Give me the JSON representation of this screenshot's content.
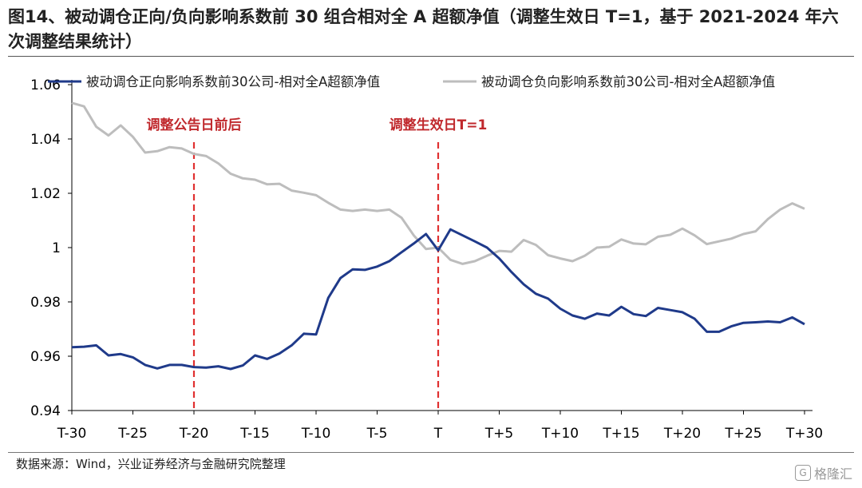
{
  "title": "图14、被动调仓正向/负向影响系数前 30 组合相对全 A 超额净值（调整生效日 T=1，基于 2021-2024 年六次调整结果统计）",
  "source": "数据来源：Wind，兴业证券经济与金融研究院整理",
  "watermark": "格隆汇",
  "chart_data": {
    "type": "line",
    "x": [
      "T-30",
      "T-29",
      "T-28",
      "T-27",
      "T-26",
      "T-25",
      "T-24",
      "T-23",
      "T-22",
      "T-21",
      "T-20",
      "T-19",
      "T-18",
      "T-17",
      "T-16",
      "T-15",
      "T-14",
      "T-13",
      "T-12",
      "T-11",
      "T-10",
      "T-9",
      "T-8",
      "T-7",
      "T-6",
      "T-5",
      "T-4",
      "T-3",
      "T-2",
      "T-1",
      "T",
      "T+1",
      "T+2",
      "T+3",
      "T+4",
      "T+5",
      "T+6",
      "T+7",
      "T+8",
      "T+9",
      "T+10",
      "T+11",
      "T+12",
      "T+13",
      "T+14",
      "T+15",
      "T+16",
      "T+17",
      "T+18",
      "T+19",
      "T+20",
      "T+21",
      "T+22",
      "T+23",
      "T+24",
      "T+25",
      "T+26",
      "T+27",
      "T+28",
      "T+29",
      "T+30"
    ],
    "tick_labels": [
      "T-30",
      "T-25",
      "T-20",
      "T-15",
      "T-10",
      "T-5",
      "T",
      "T+5",
      "T+10",
      "T+15",
      "T+20",
      "T+25",
      "T+30"
    ],
    "ylim": [
      0.94,
      1.06
    ],
    "yticks": [
      "0.94",
      "0.96",
      "0.98",
      "1",
      "1.02",
      "1.04",
      "1.06"
    ],
    "series": [
      {
        "name": "被动调仓正向影响系数前30公司-相对全A超额净值",
        "color": "#1f3a8a",
        "values": [
          0.9633,
          0.9635,
          0.964,
          0.9603,
          0.9608,
          0.9596,
          0.9568,
          0.9555,
          0.9568,
          0.9568,
          0.956,
          0.9558,
          0.9563,
          0.9553,
          0.9566,
          0.9603,
          0.959,
          0.961,
          0.964,
          0.9683,
          0.968,
          0.9815,
          0.9888,
          0.992,
          0.9918,
          0.993,
          0.995,
          0.9983,
          1.0015,
          1.005,
          0.999,
          1.0067,
          1.0045,
          1.0023,
          1.0,
          0.996,
          0.991,
          0.9865,
          0.983,
          0.9812,
          0.9775,
          0.975,
          0.9738,
          0.9757,
          0.975,
          0.9782,
          0.9755,
          0.9748,
          0.9778,
          0.977,
          0.9762,
          0.9738,
          0.969,
          0.969,
          0.971,
          0.9723,
          0.9725,
          0.9728,
          0.9725,
          0.9743,
          0.9718
        ]
      },
      {
        "name": "被动调仓负向影响系数前30公司-相对全A超额净值",
        "color": "#bdbdbd",
        "values": [
          1.0533,
          1.052,
          1.0445,
          1.0413,
          1.045,
          1.0408,
          1.035,
          1.0355,
          1.037,
          1.0365,
          1.0345,
          1.0337,
          1.031,
          1.0272,
          1.0255,
          1.025,
          1.0233,
          1.0235,
          1.021,
          1.0202,
          1.0193,
          1.0165,
          1.014,
          1.0135,
          1.014,
          1.0135,
          1.014,
          1.011,
          1.0045,
          0.9995,
          1.0,
          0.9955,
          0.994,
          0.995,
          0.997,
          0.9988,
          0.9985,
          1.0028,
          1.001,
          0.9972,
          0.996,
          0.995,
          0.997,
          1.0,
          1.0003,
          1.003,
          1.0015,
          1.0012,
          1.004,
          1.0047,
          1.007,
          1.0045,
          1.0013,
          1.0023,
          1.0033,
          1.005,
          1.006,
          1.0105,
          1.014,
          1.0163,
          1.0143
        ]
      }
    ],
    "annotations": [
      {
        "x": "T-20",
        "label": "调整公告日前后",
        "color": "#e03030"
      },
      {
        "x": "T",
        "label": "调整生效日T=1",
        "color": "#e03030"
      }
    ],
    "legend": "top",
    "grid": false
  }
}
